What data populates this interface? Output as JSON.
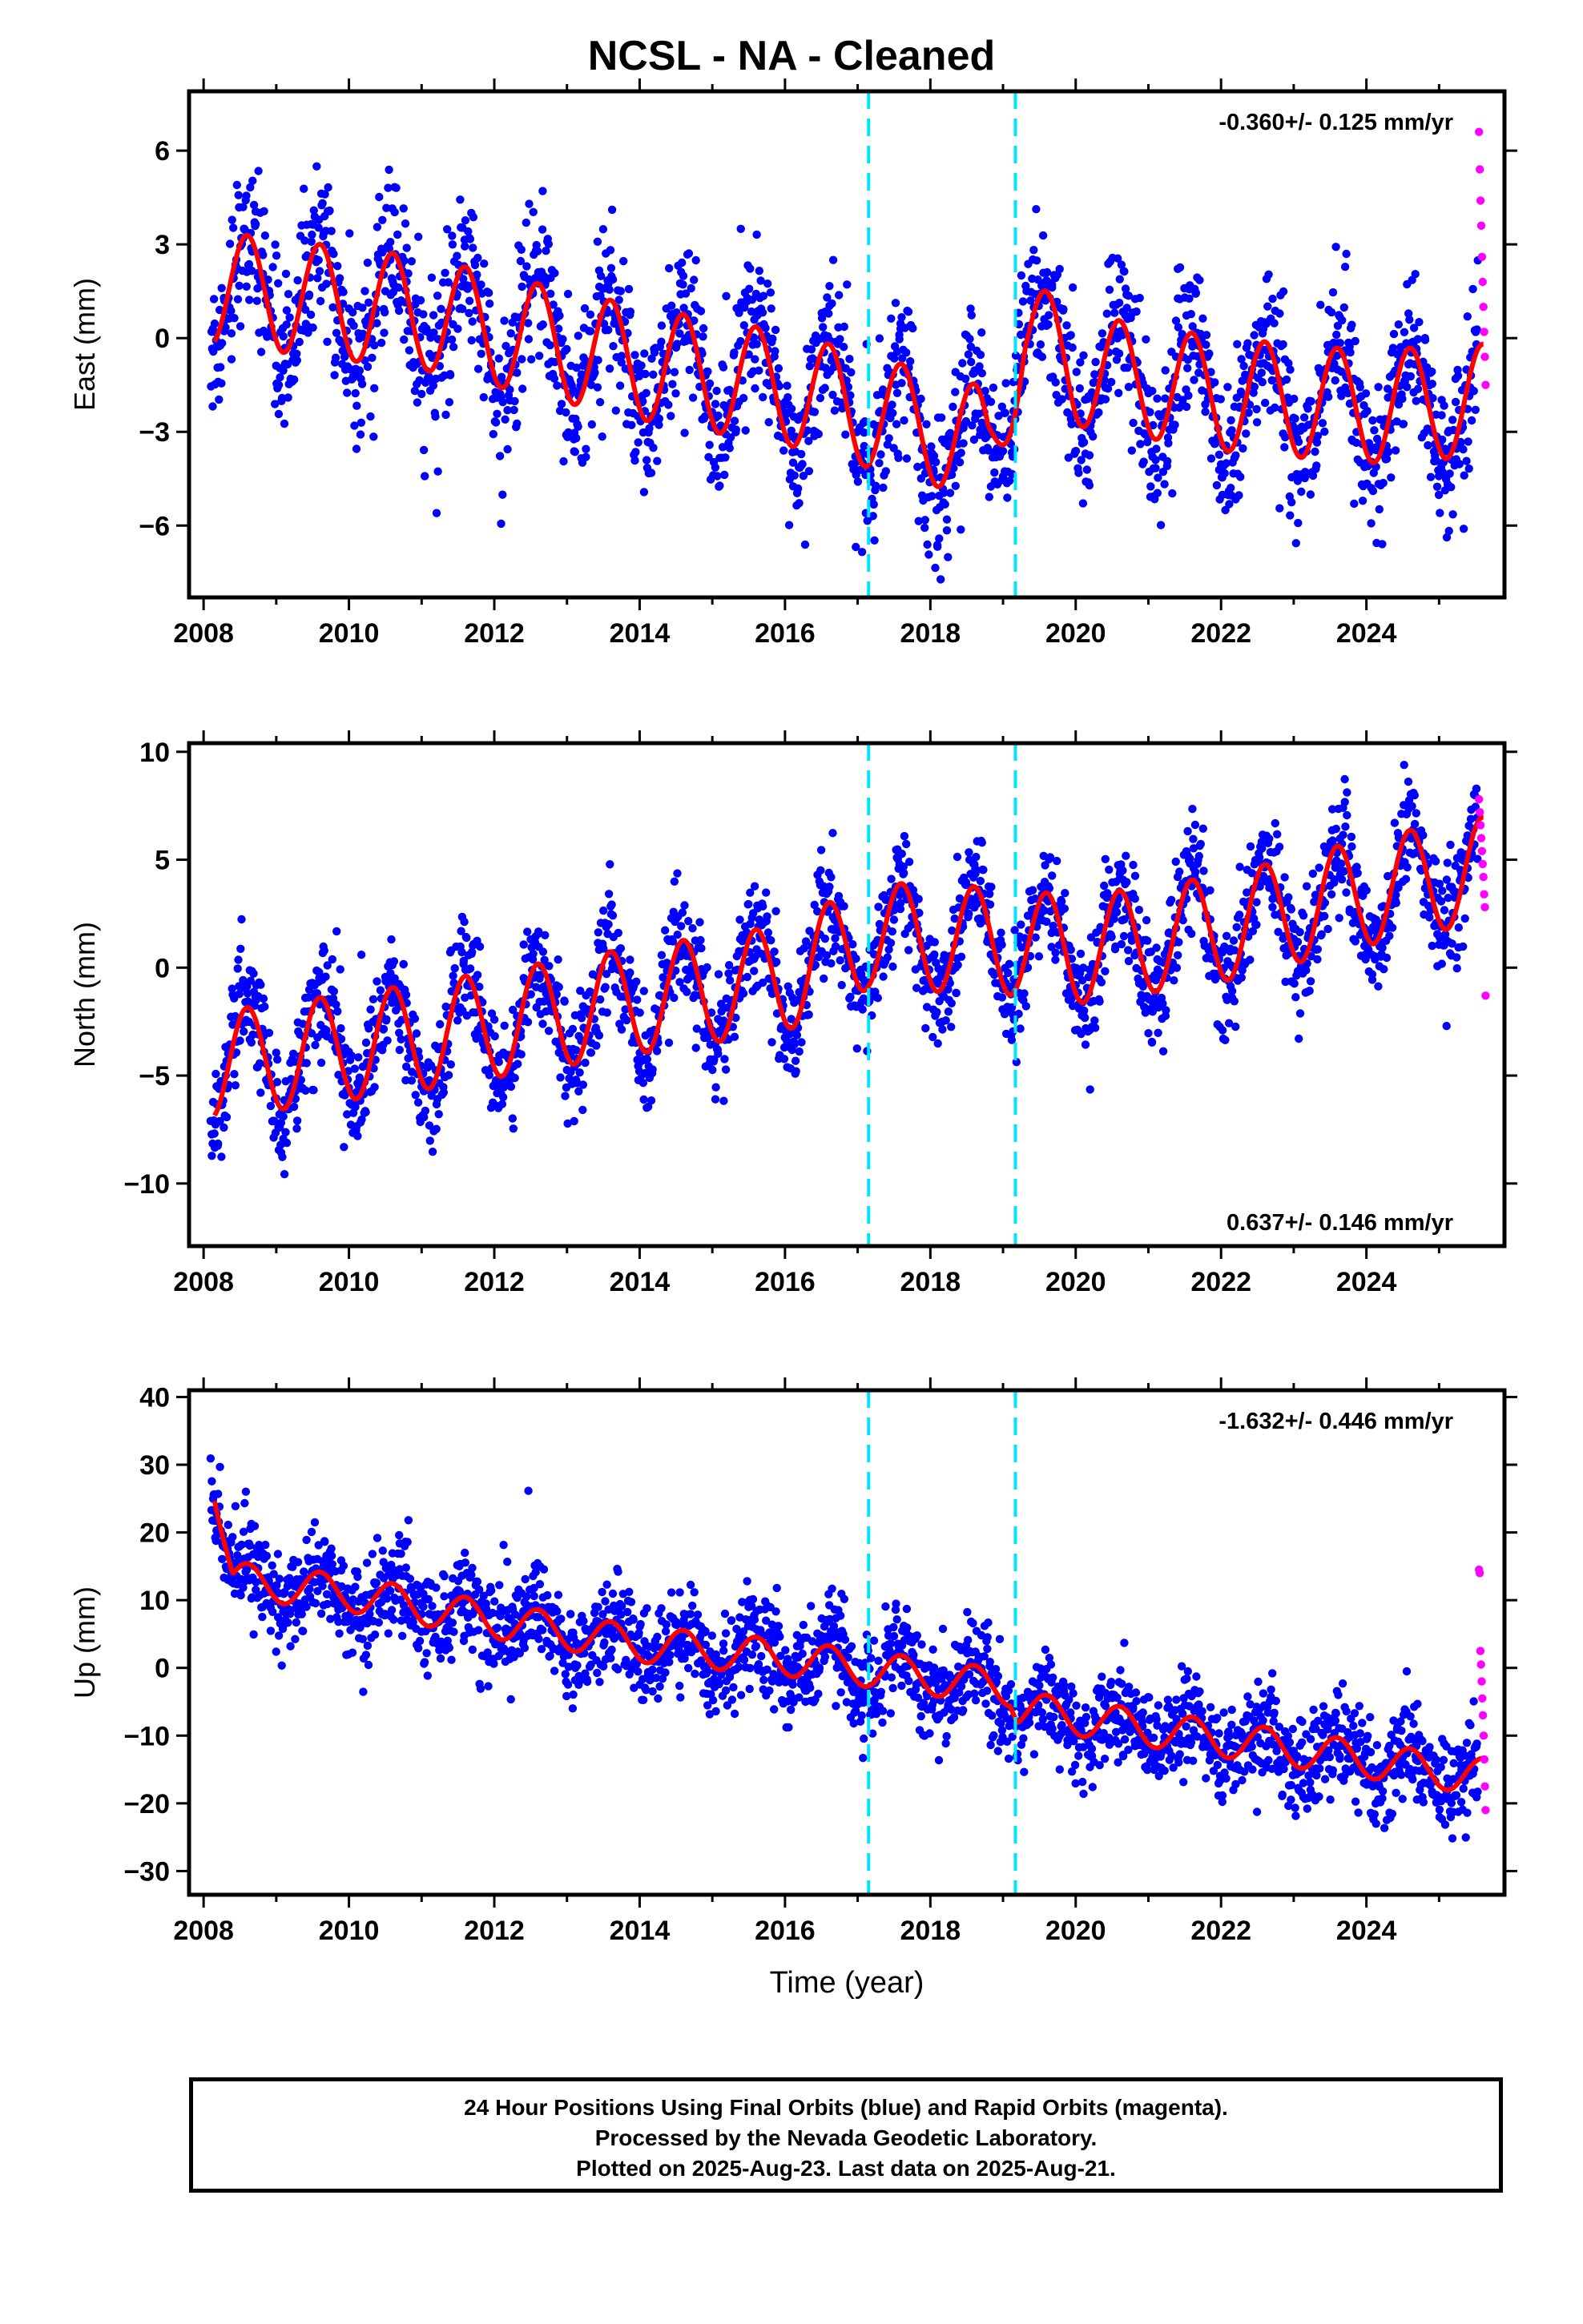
{
  "title": "NCSL  - NA - Cleaned",
  "colors": {
    "final_orbits": "#0000ff",
    "rapid_orbits": "#ff00ff",
    "model_fit": "#ff0000",
    "breaks": "#00e5ff"
  },
  "chart_data": [
    {
      "type": "scatter",
      "component": "East",
      "ylabel": "East (mm)",
      "xlabel": "",
      "xlim": [
        2007.8,
        2025.9
      ],
      "ylim": [
        -8.3,
        7.9
      ],
      "yticks": [
        -6,
        -3,
        0,
        3,
        6
      ],
      "ytick_labels": [
        "−6",
        "−3",
        "0",
        "3",
        "6"
      ],
      "xticks": [
        2008,
        2010,
        2012,
        2014,
        2016,
        2018,
        2020,
        2022,
        2024
      ],
      "rate_label": "-0.360+/- 0.125 mm/yr",
      "rate_position": "top-right",
      "breaks": [
        2017.15,
        2019.17
      ],
      "series": [
        {
          "name": "Final Orbits (blue)",
          "x_range": [
            2008.1,
            2025.54
          ],
          "trend": [
            [
              2008.2,
              1.6
            ],
            [
              2011,
              0.8
            ],
            [
              2014,
              -0.8
            ],
            [
              2016,
              -1.6
            ],
            [
              2018.8,
              -3.4
            ],
            [
              2019.3,
              0.2
            ],
            [
              2020,
              -1.0
            ],
            [
              2022,
              -1.8
            ],
            [
              2024,
              -2.2
            ],
            [
              2025.5,
              -2.0
            ]
          ],
          "scatter_sd": 1.2
        },
        {
          "name": "Rapid Orbits (magenta)",
          "x_range": [
            2025.55,
            2025.64
          ],
          "values": [
            6.6,
            5.4,
            4.4,
            3.6,
            2.6,
            1.8,
            1.0,
            0.2,
            -0.6,
            -1.5
          ]
        },
        {
          "name": "Model fit",
          "x_range": [
            2008.15,
            2025.62
          ],
          "annual_amplitude": 1.9
        }
      ]
    },
    {
      "type": "scatter",
      "component": "North",
      "ylabel": "North (mm)",
      "xlabel": "",
      "xlim": [
        2007.8,
        2025.9
      ],
      "ylim": [
        -12.9,
        10.4
      ],
      "yticks": [
        -10,
        -5,
        0,
        5,
        10
      ],
      "ytick_labels": [
        "−10",
        "−5",
        "0",
        "5",
        "10"
      ],
      "xticks": [
        2008,
        2010,
        2012,
        2014,
        2016,
        2018,
        2020,
        2022,
        2024
      ],
      "rate_label": "0.637+/- 0.146 mm/yr",
      "rate_position": "bottom-right",
      "breaks": [
        2017.15,
        2019.17
      ],
      "series": [
        {
          "name": "Final Orbits (blue)",
          "x_range": [
            2008.1,
            2025.54
          ],
          "trend": [
            [
              2008.2,
              -4.5
            ],
            [
              2011,
              -3.2
            ],
            [
              2014,
              -1.5
            ],
            [
              2016,
              -0.5
            ],
            [
              2017.15,
              1.5
            ],
            [
              2019.17,
              1.2
            ],
            [
              2020,
              0.8
            ],
            [
              2022,
              1.8
            ],
            [
              2024,
              3.5
            ],
            [
              2025.5,
              4.5
            ]
          ],
          "scatter_sd": 1.3
        },
        {
          "name": "Rapid Orbits (magenta)",
          "x_range": [
            2025.55,
            2025.64
          ],
          "values": [
            7.8,
            7.2,
            6.6,
            6.0,
            5.4,
            4.8,
            4.2,
            3.4,
            2.8,
            -1.3
          ]
        },
        {
          "name": "Model fit",
          "x_range": [
            2008.15,
            2025.62
          ],
          "annual_amplitude": 2.6
        }
      ]
    },
    {
      "type": "scatter",
      "component": "Up",
      "ylabel": "Up (mm)",
      "xlabel": "Time (year)",
      "xlim": [
        2007.8,
        2025.9
      ],
      "ylim": [
        -33.5,
        41.0
      ],
      "yticks": [
        -30,
        -20,
        -10,
        0,
        10,
        20,
        30,
        40
      ],
      "ytick_labels": [
        "−30",
        "−20",
        "−10",
        "0",
        "10",
        "20",
        "30",
        "40"
      ],
      "xticks": [
        2008,
        2010,
        2012,
        2014,
        2016,
        2018,
        2020,
        2022,
        2024
      ],
      "rate_label": "-1.632+/- 0.446 mm/yr",
      "rate_position": "top-right",
      "breaks": [
        2017.15,
        2019.17
      ],
      "series": [
        {
          "name": "Final Orbits (blue)",
          "x_range": [
            2008.1,
            2025.54
          ],
          "trend": [
            [
              2008.1,
              30
            ],
            [
              2008.4,
              13
            ],
            [
              2010,
              11
            ],
            [
              2012,
              7
            ],
            [
              2014,
              3.5
            ],
            [
              2016,
              1.5
            ],
            [
              2019.1,
              -3
            ],
            [
              2019.2,
              -6
            ],
            [
              2021,
              -9
            ],
            [
              2023,
              -12
            ],
            [
              2025.5,
              -16
            ]
          ],
          "scatter_sd": 3.6
        },
        {
          "name": "Rapid Orbits (magenta)",
          "x_range": [
            2025.55,
            2025.64
          ],
          "values": [
            14.5,
            14.0,
            2.5,
            0.5,
            -2.0,
            -4.5,
            -7.0,
            -10.0,
            -13.5,
            -17.5,
            -21.0
          ]
        },
        {
          "name": "Model fit",
          "x_range": [
            2008.15,
            2025.62
          ],
          "annual_amplitude": 2.8
        }
      ]
    }
  ],
  "footer": {
    "line1": "24 Hour Positions Using Final Orbits (blue) and Rapid Orbits (magenta).",
    "line2": "Processed by the Nevada Geodetic Laboratory.",
    "line3": "Plotted on 2025-Aug-23. Last data on 2025-Aug-21."
  }
}
